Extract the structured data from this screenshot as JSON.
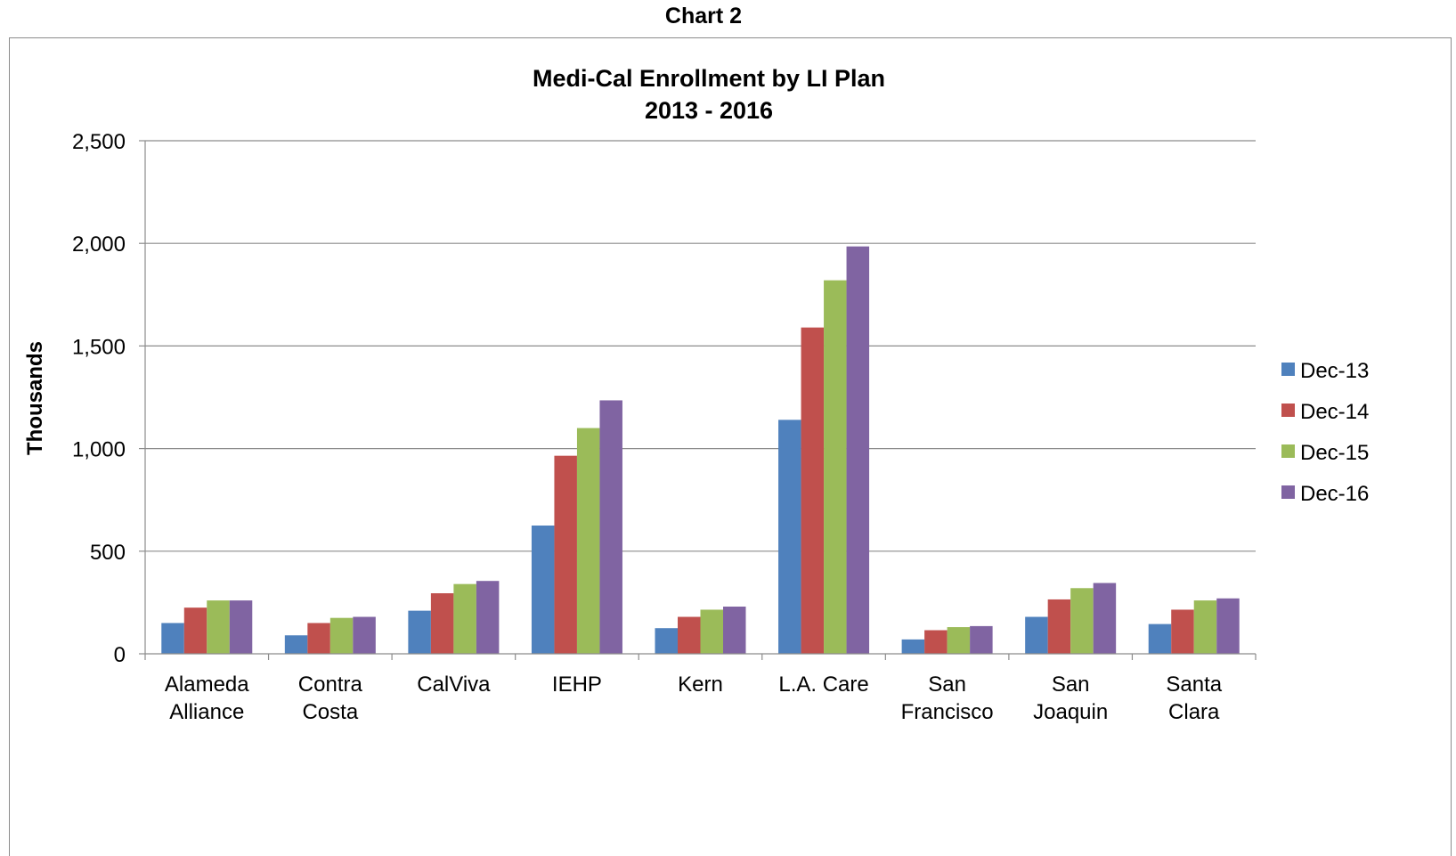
{
  "page": {
    "heading": "Chart 2"
  },
  "chart_data": {
    "type": "bar",
    "title": "Medi-Cal Enrollment by LI Plan",
    "subtitle": "2013 - 2016",
    "xlabel": "",
    "ylabel": "Thousands",
    "ylim": [
      0,
      2500
    ],
    "yticks": [
      "0",
      "500",
      "1,000",
      "1,500",
      "2,000",
      "2,500"
    ],
    "grid": true,
    "legend_position": "right",
    "categories": [
      [
        "Alameda",
        "Alliance"
      ],
      [
        "Contra",
        "Costa"
      ],
      [
        "CalViva"
      ],
      [
        "IEHP"
      ],
      [
        "Kern"
      ],
      [
        "L.A. Care"
      ],
      [
        "San",
        "Francisco"
      ],
      [
        "San",
        "Joaquin"
      ],
      [
        "Santa",
        "Clara"
      ]
    ],
    "series": [
      {
        "name": "Dec-13",
        "color": "#4f81bd",
        "values": [
          150,
          90,
          210,
          625,
          125,
          1140,
          70,
          180,
          145
        ]
      },
      {
        "name": "Dec-14",
        "color": "#c0504d",
        "values": [
          225,
          150,
          295,
          965,
          180,
          1590,
          115,
          265,
          215
        ]
      },
      {
        "name": "Dec-15",
        "color": "#9bbb59",
        "values": [
          260,
          175,
          340,
          1100,
          215,
          1820,
          130,
          320,
          260
        ]
      },
      {
        "name": "Dec-16",
        "color": "#8064a2",
        "values": [
          260,
          180,
          355,
          1235,
          230,
          1985,
          135,
          345,
          270
        ]
      }
    ]
  }
}
